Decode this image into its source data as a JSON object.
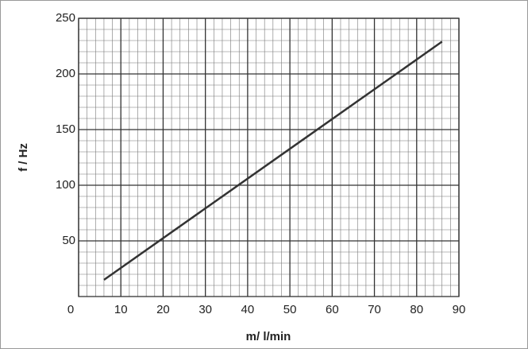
{
  "chart_data": {
    "type": "line",
    "x_label": "m/ l/min",
    "y_label": "f / Hz",
    "x": [
      6,
      86
    ],
    "series": [
      {
        "color": "#333333",
        "values": [
          15,
          229
        ]
      }
    ],
    "xlim": [
      0,
      90
    ],
    "xticks": [
      0,
      10,
      20,
      30,
      40,
      50,
      60,
      70,
      80,
      90
    ],
    "ylim": [
      0,
      250
    ],
    "yticks": [
      50,
      100,
      150,
      200,
      250
    ],
    "grid": true
  }
}
